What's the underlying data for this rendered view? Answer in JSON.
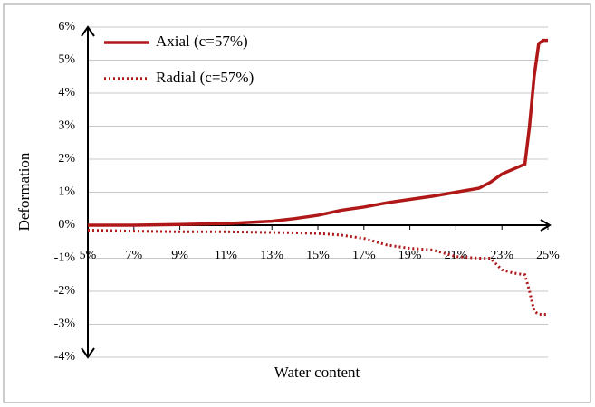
{
  "chart_data": {
    "type": "line",
    "x_label": "Water content",
    "y_label": "Deformation",
    "x": [
      5,
      7,
      9,
      11,
      13,
      14,
      15,
      16,
      17,
      18,
      19,
      20,
      21,
      22,
      22.5,
      23,
      23.5,
      24,
      24.2,
      24.4,
      24.6,
      24.8,
      25
    ],
    "series": [
      {
        "name": "Axial (c=57%)",
        "color": "#b01818",
        "line_style": "solid",
        "values": [
          0,
          0,
          0.02,
          0.05,
          0.12,
          0.2,
          0.3,
          0.45,
          0.55,
          0.68,
          0.78,
          0.88,
          1.0,
          1.12,
          1.3,
          1.55,
          1.7,
          1.85,
          3.0,
          4.5,
          5.5,
          5.6,
          5.6
        ]
      },
      {
        "name": "Radial (c=57%)",
        "color": "#b01818",
        "line_style": "dotted",
        "values": [
          -0.15,
          -0.18,
          -0.2,
          -0.2,
          -0.22,
          -0.23,
          -0.25,
          -0.3,
          -0.4,
          -0.6,
          -0.7,
          -0.75,
          -0.95,
          -1.0,
          -1.0,
          -1.35,
          -1.45,
          -1.5,
          -2.0,
          -2.6,
          -2.7,
          -2.7,
          -2.7
        ]
      }
    ],
    "xlim": [
      5,
      25
    ],
    "xticks": [
      {
        "value": 5,
        "label": "5%"
      },
      {
        "value": 7,
        "label": "7%"
      },
      {
        "value": 9,
        "label": "9%"
      },
      {
        "value": 11,
        "label": "11%"
      },
      {
        "value": 13,
        "label": "13%"
      },
      {
        "value": 15,
        "label": "15%"
      },
      {
        "value": 17,
        "label": "17%"
      },
      {
        "value": 19,
        "label": "19%"
      },
      {
        "value": 21,
        "label": "21%"
      },
      {
        "value": 23,
        "label": "23%"
      },
      {
        "value": 25,
        "label": "25%"
      }
    ],
    "ylim": [
      -4,
      6
    ],
    "yticks": [
      {
        "value": -4,
        "label": "-4%"
      },
      {
        "value": -3,
        "label": "-3%"
      },
      {
        "value": -2,
        "label": "-2%"
      },
      {
        "value": -1,
        "label": "-1%"
      },
      {
        "value": 0,
        "label": "0%"
      },
      {
        "value": 1,
        "label": "1%"
      },
      {
        "value": 2,
        "label": "2%"
      },
      {
        "value": 3,
        "label": "3%"
      },
      {
        "value": 4,
        "label": "4%"
      },
      {
        "value": 5,
        "label": "5%"
      },
      {
        "value": 6,
        "label": "6%"
      }
    ],
    "grid": true,
    "legend": "upper left"
  }
}
